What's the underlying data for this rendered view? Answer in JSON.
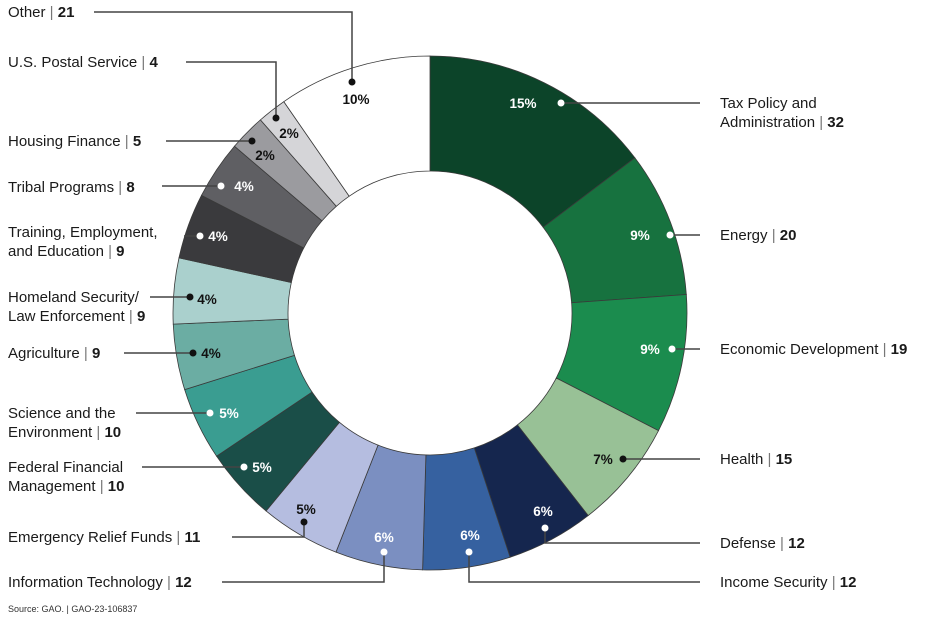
{
  "chart_data": {
    "type": "pie",
    "subtype": "donut",
    "start": "top, clockwise",
    "slices": [
      {
        "name_lines": [
          "Tax Policy and",
          "Administration"
        ],
        "value": 32,
        "pct": "15%",
        "color": "#0c4429"
      },
      {
        "name_lines": [
          "Energy"
        ],
        "value": 20,
        "pct": "9%",
        "color": "#17723f"
      },
      {
        "name_lines": [
          "Economic Development"
        ],
        "value": 19,
        "pct": "9%",
        "color": "#1b8c4e"
      },
      {
        "name_lines": [
          "Health"
        ],
        "value": 15,
        "pct": "7%",
        "color": "#98c196"
      },
      {
        "name_lines": [
          "Defense"
        ],
        "value": 12,
        "pct": "6%",
        "color": "#15264e"
      },
      {
        "name_lines": [
          "Income Security"
        ],
        "value": 12,
        "pct": "6%",
        "color": "#3661a0"
      },
      {
        "name_lines": [
          "Information Technology"
        ],
        "value": 12,
        "pct": "6%",
        "color": "#7b8fc1"
      },
      {
        "name_lines": [
          "Emergency Relief Funds"
        ],
        "value": 11,
        "pct": "5%",
        "color": "#b5bde0"
      },
      {
        "name_lines": [
          "Federal Financial",
          "Management"
        ],
        "value": 10,
        "pct": "5%",
        "color": "#1a4e48"
      },
      {
        "name_lines": [
          "Science and the",
          "Environment"
        ],
        "value": 10,
        "pct": "5%",
        "color": "#3a9d91"
      },
      {
        "name_lines": [
          "Agriculture"
        ],
        "value": 9,
        "pct": "4%",
        "color": "#6bada3"
      },
      {
        "name_lines": [
          "Homeland Security/",
          "Law Enforcement"
        ],
        "value": 9,
        "pct": "4%",
        "color": "#aad0cd"
      },
      {
        "name_lines": [
          "Training, Employment,",
          "and Education"
        ],
        "value": 9,
        "pct": "4%",
        "color": "#3a3a3d"
      },
      {
        "name_lines": [
          "Tribal Programs"
        ],
        "value": 8,
        "pct": "4%",
        "color": "#5f5f63"
      },
      {
        "name_lines": [
          "Housing Finance"
        ],
        "value": 5,
        "pct": "2%",
        "color": "#9b9b9f"
      },
      {
        "name_lines": [
          "U.S. Postal Service"
        ],
        "value": 4,
        "pct": "2%",
        "color": "#d5d5d8"
      },
      {
        "name_lines": [
          "Other"
        ],
        "value": 21,
        "pct": "10%",
        "color": "#ffffff"
      }
    ],
    "separator": "|"
  },
  "source": "Source: GAO.  |  GAO-23-106837"
}
